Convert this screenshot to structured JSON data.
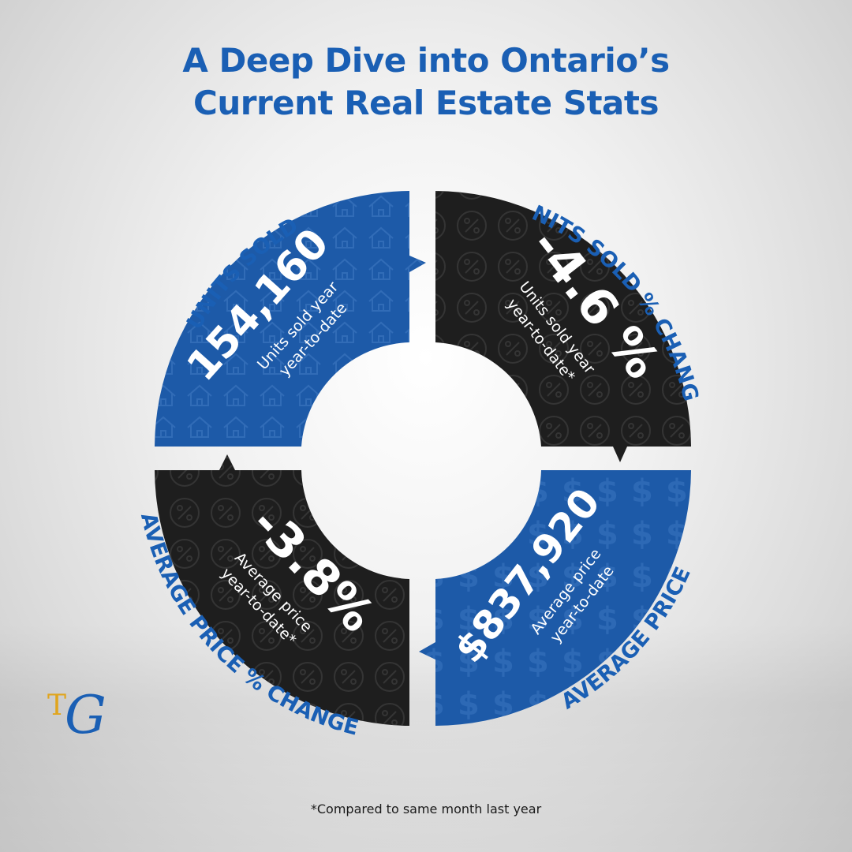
{
  "header": {
    "title_line1": "A Deep Dive into Ontario’s",
    "title_line2": "Current Real Estate Stats"
  },
  "colors": {
    "title_blue": "#1a5fb4",
    "segment_blue": "#1d5aa8",
    "segment_black": "#1e1e1e",
    "logo_gold": "#e0a51e"
  },
  "segments": {
    "units_sold": {
      "label": "UNITS SOLD",
      "value": "154,160",
      "desc_line1": "Units  sold year",
      "desc_line2": "year-to-date"
    },
    "units_sold_change": {
      "label": "UNITS SOLD % CHANGE",
      "value": "-4.6 %",
      "desc_line1": "Units  sold year",
      "desc_line2": "year-to-date*"
    },
    "average_price": {
      "label": "AVERAGE PRICE",
      "value": "$837,920",
      "desc_line1": "Average price",
      "desc_line2": "year-to-date"
    },
    "average_price_change": {
      "label": "AVERAGE PRICE % CHANGE",
      "value": "-3.8%",
      "desc_line1": "Average price",
      "desc_line2": "year-to-date*"
    }
  },
  "footnote": "*Compared to same month last year",
  "logo": {
    "t": "T",
    "g": "G"
  },
  "icons": [
    "house-pattern-icon",
    "percent-pattern-icon",
    "dollar-pattern-icon"
  ]
}
